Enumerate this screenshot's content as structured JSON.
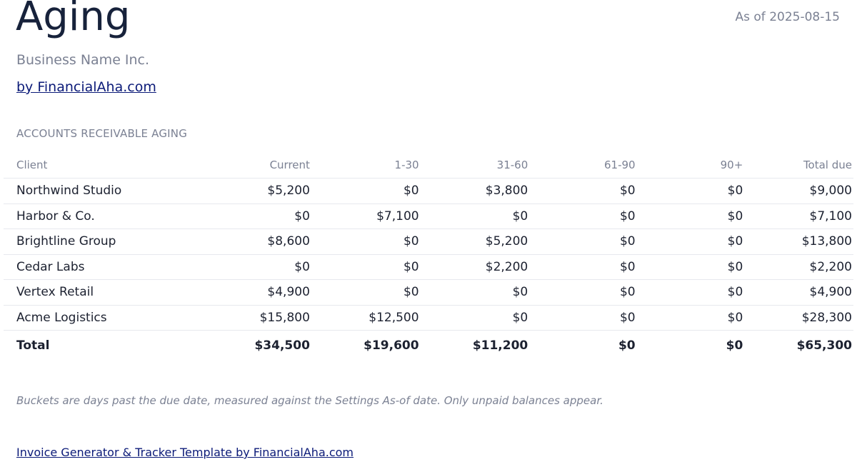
{
  "header": {
    "title": "Aging",
    "as_of": "As of 2025-08-15",
    "business_name": "Business Name Inc.",
    "brand_link": "by FinancialAha.com"
  },
  "section": {
    "label": "ACCOUNTS RECEIVABLE AGING"
  },
  "table": {
    "columns": [
      "Client",
      "Current",
      "1-30",
      "31-60",
      "61-90",
      "90+",
      "Total due"
    ],
    "rows": [
      [
        "Northwind Studio",
        "$5,200",
        "$0",
        "$3,800",
        "$0",
        "$0",
        "$9,000"
      ],
      [
        "Harbor & Co.",
        "$0",
        "$7,100",
        "$0",
        "$0",
        "$0",
        "$7,100"
      ],
      [
        "Brightline Group",
        "$8,600",
        "$0",
        "$5,200",
        "$0",
        "$0",
        "$13,800"
      ],
      [
        "Cedar Labs",
        "$0",
        "$0",
        "$2,200",
        "$0",
        "$0",
        "$2,200"
      ],
      [
        "Vertex Retail",
        "$4,900",
        "$0",
        "$0",
        "$0",
        "$0",
        "$4,900"
      ],
      [
        "Acme Logistics",
        "$15,800",
        "$12,500",
        "$0",
        "$0",
        "$0",
        "$28,300"
      ]
    ],
    "total": [
      "Total",
      "$34,500",
      "$19,600",
      "$11,200",
      "$0",
      "$0",
      "$65,300"
    ]
  },
  "note": "Buckets are days past the due date, measured against the Settings As-of date. Only unpaid balances appear.",
  "footer": {
    "link": "Invoice Generator & Tracker Template by FinancialAha.com"
  },
  "colors": {
    "title": "#17223b",
    "muted": "#7b8193",
    "link": "#0b1a78",
    "rule": "#e7e9ee"
  }
}
